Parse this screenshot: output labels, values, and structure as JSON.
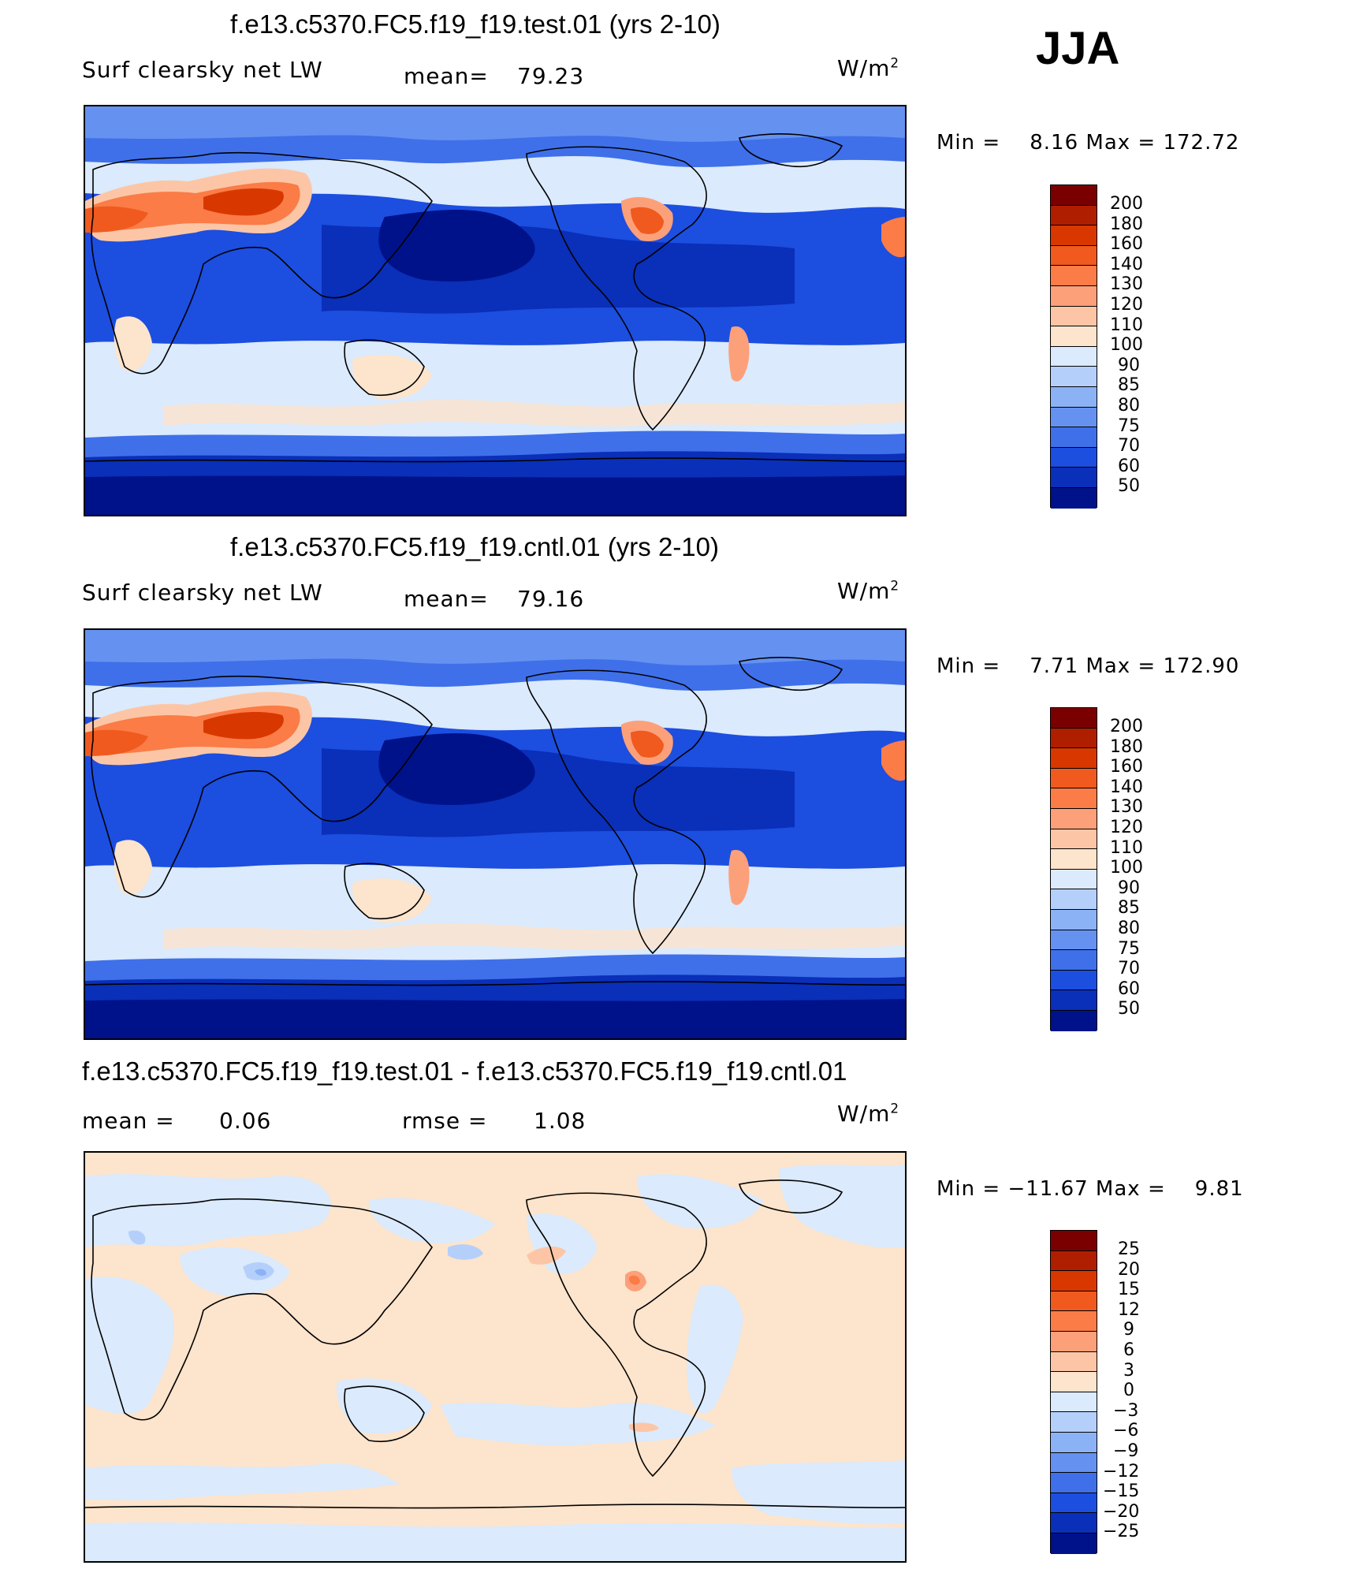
{
  "season": "JJA",
  "units_base": "W/m",
  "units_exp": "2",
  "panels": [
    {
      "title": "f.e13.c5370.FC5.f19_f19.test.01 (yrs 2-10)",
      "variable": "Surf clearsky net LW",
      "stat1_label": "mean=",
      "stat1_value": "79.23",
      "minmax": "Min =    8.16 Max = 172.72",
      "min": 8.16,
      "max": 172.72
    },
    {
      "title": "f.e13.c5370.FC5.f19_f19.cntl.01 (yrs 2-10)",
      "variable": "Surf clearsky net LW",
      "stat1_label": "mean=",
      "stat1_value": "79.16",
      "minmax": "Min =    7.71 Max = 172.90",
      "min": 7.71,
      "max": 172.9
    },
    {
      "title": "f.e13.c5370.FC5.f19_f19.test.01 - f.e13.c5370.FC5.f19_f19.cntl.01",
      "stat1_label": "mean =",
      "stat1_value": "0.06",
      "stat2_label": "rmse =",
      "stat2_value": "1.08",
      "minmax": "Min = −11.67 Max =    9.81",
      "min": -11.67,
      "max": 9.81
    }
  ],
  "colorbar_main": {
    "labels": [
      "200",
      "180",
      "160",
      "140",
      "130",
      "120",
      "110",
      "100",
      "90",
      "85",
      "80",
      "75",
      "70",
      "60",
      "50"
    ],
    "colors": [
      "#7a0000",
      "#b01e00",
      "#d83800",
      "#f05a1e",
      "#fb7c46",
      "#fca07a",
      "#fcc6a6",
      "#fde4cc",
      "#dbeafc",
      "#b4d0fa",
      "#8cb2f6",
      "#6592f0",
      "#3f70ea",
      "#1c4ee0",
      "#0a2fb8",
      "#00128a"
    ]
  },
  "colorbar_diff": {
    "labels": [
      "25",
      "20",
      "15",
      "12",
      "9",
      "6",
      "3",
      "0",
      "−3",
      "−6",
      "−9",
      "−12",
      "−15",
      "−20",
      "−25"
    ],
    "colors": [
      "#7a0000",
      "#b01e00",
      "#d83800",
      "#f05a1e",
      "#fb7c46",
      "#fca07a",
      "#fcc6a6",
      "#fde4cc",
      "#dbeafc",
      "#b4d0fa",
      "#8cb2f6",
      "#6592f0",
      "#3f70ea",
      "#1c4ee0",
      "#0a2fb8",
      "#00128a"
    ]
  }
}
